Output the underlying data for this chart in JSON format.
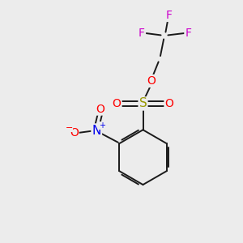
{
  "background_color": "#ececec",
  "bond_color": "#1a1a1a",
  "atom_colors": {
    "F": "#cc00cc",
    "O": "#ff0000",
    "S": "#999900",
    "N": "#0000ee",
    "C": "#1a1a1a"
  },
  "figsize": [
    3.0,
    3.0
  ],
  "dpi": 100
}
